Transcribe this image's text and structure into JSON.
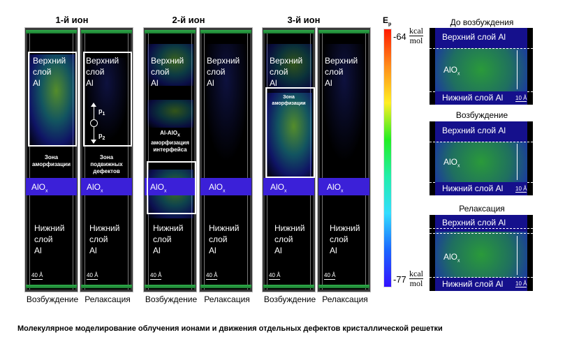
{
  "ions": [
    {
      "title": "1-й ион"
    },
    {
      "title": "2-й ион"
    },
    {
      "title": "3-й ион"
    }
  ],
  "labels": {
    "excitation": "Возбуждение",
    "relaxation": "Релаксация"
  },
  "upper_layer": [
    "Верхний",
    "слой",
    "Al"
  ],
  "lower_layer": [
    "Нижний",
    "слой",
    "Al"
  ],
  "alox": {
    "base": "AlO",
    "sub": "x"
  },
  "scale_big": "40 Å",
  "scale_small": "10 Å",
  "zones": {
    "amorph": [
      "Зона",
      "аморфизации"
    ],
    "mobile": [
      "Зона",
      "подвижных",
      "дефектов"
    ],
    "interface": [
      "Al-AlO",
      "x",
      "аморфизация",
      "интерфейса"
    ]
  },
  "p1": {
    "base": "p",
    "sub": "1"
  },
  "p2": {
    "base": "p",
    "sub": "2"
  },
  "colorbar": {
    "label": "E",
    "label_sub": "p",
    "max": "-64",
    "min": "-77",
    "unit_num": "kcal",
    "unit_den": "mol",
    "colors": [
      "#ff1a00",
      "#ff8c1a",
      "#ffee22",
      "#22ee22",
      "#22eeaa",
      "#33ddff",
      "#1a66ff",
      "#3311ff"
    ]
  },
  "right_panels": [
    {
      "title": "До возбуждения",
      "upper": "Верхний слой Al",
      "lower": "Нижний слой Al"
    },
    {
      "title": "Возбуждение",
      "upper": "Верхний слой Al",
      "lower": "Нижний слой Al"
    },
    {
      "title": "Релаксация",
      "upper": "Верхний слой Al",
      "lower": "Нижний слой Al"
    }
  ],
  "caption": "Молекулярное моделирование облучения ионами и движения отдельных дефектов кристаллической решетки"
}
